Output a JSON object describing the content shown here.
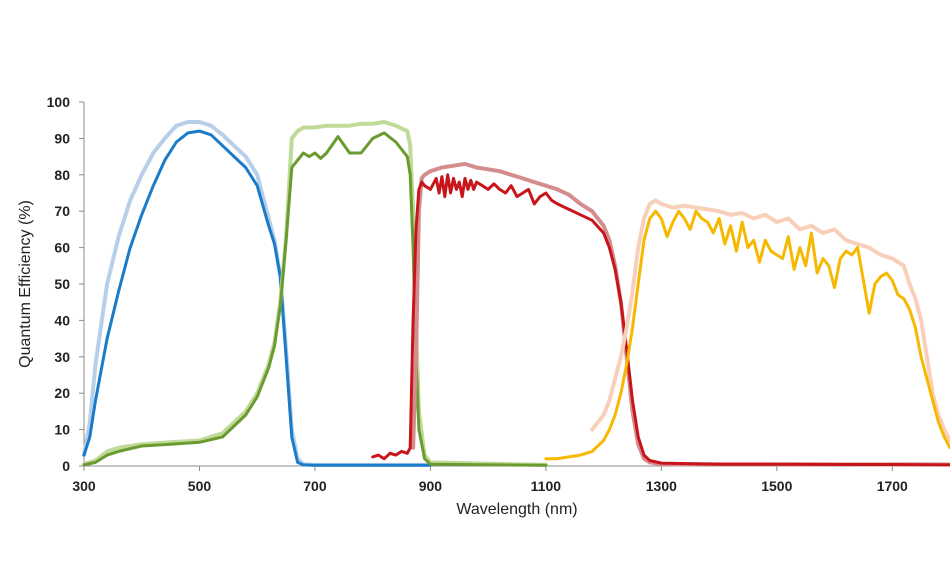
{
  "chart_data": {
    "type": "line",
    "title": "",
    "xlabel": "Wavelength (nm)",
    "ylabel": "Quantum Efficiency (%)",
    "xlim": [
      300,
      1800
    ],
    "ylim": [
      0,
      100
    ],
    "xticks": [
      300,
      500,
      700,
      900,
      1100,
      1300,
      1500,
      1700
    ],
    "yticks": [
      0,
      10,
      20,
      30,
      40,
      50,
      60,
      70,
      80,
      90,
      100
    ],
    "grid": false,
    "legend": "none",
    "series": [
      {
        "color": "#b7cfe9",
        "width": 4,
        "x": [
          300,
          310,
          320,
          340,
          360,
          380,
          400,
          420,
          440,
          460,
          480,
          500,
          520,
          540,
          560,
          580,
          600,
          620,
          630,
          640,
          650,
          660,
          670,
          680,
          700,
          900
        ],
        "y": [
          3,
          12,
          28,
          50,
          63,
          73,
          80,
          86,
          90,
          93.5,
          94.5,
          94.5,
          93.5,
          91,
          88,
          85,
          80,
          68,
          62,
          52,
          32,
          10,
          2,
          0.5,
          0.3,
          0.3
        ]
      },
      {
        "color": "#1a7cc9",
        "width": 3,
        "x": [
          300,
          310,
          320,
          340,
          360,
          380,
          400,
          420,
          440,
          460,
          480,
          500,
          520,
          540,
          560,
          580,
          600,
          620,
          630,
          640,
          650,
          660,
          670,
          680,
          700,
          900
        ],
        "y": [
          3,
          8,
          18,
          35,
          48,
          60,
          69,
          77,
          84,
          89,
          91.5,
          92,
          91,
          88,
          85,
          82,
          77,
          66,
          61,
          52,
          30,
          8,
          1,
          0.3,
          0.2,
          0.2
        ]
      },
      {
        "color": "#c0da98",
        "width": 4,
        "x": [
          300,
          320,
          340,
          360,
          400,
          450,
          500,
          540,
          580,
          600,
          620,
          630,
          640,
          650,
          660,
          670,
          680,
          700,
          720,
          740,
          760,
          780,
          800,
          820,
          840,
          860,
          865,
          870,
          875,
          880,
          890,
          900,
          1100
        ],
        "y": [
          0.5,
          1.5,
          4,
          5,
          6,
          6.5,
          7,
          9,
          15,
          20,
          28,
          34,
          45,
          63,
          90,
          92,
          93,
          93,
          93.5,
          93.5,
          93.5,
          94,
          94,
          94.5,
          93.5,
          92,
          88,
          70,
          40,
          15,
          3,
          1,
          0.3
        ]
      },
      {
        "color": "#6a9a30",
        "width": 3,
        "x": [
          300,
          320,
          340,
          360,
          400,
          450,
          500,
          540,
          580,
          600,
          620,
          630,
          640,
          650,
          660,
          670,
          680,
          690,
          700,
          710,
          720,
          740,
          760,
          780,
          800,
          820,
          840,
          860,
          865,
          870,
          875,
          880,
          890,
          900,
          1100
        ],
        "y": [
          0.3,
          1,
          3,
          4,
          5.5,
          6,
          6.5,
          8,
          14,
          19,
          27,
          33,
          44,
          62,
          82,
          84,
          86,
          85,
          86,
          84.5,
          86,
          90.5,
          86,
          86,
          90,
          91.5,
          89,
          85,
          80,
          60,
          30,
          10,
          2,
          0.5,
          0.2
        ]
      },
      {
        "color": "#d48c8c",
        "width": 4,
        "x": [
          870,
          875,
          880,
          885,
          890,
          900,
          920,
          940,
          960,
          980,
          1000,
          1020,
          1040,
          1060,
          1080,
          1100,
          1120,
          1140,
          1160,
          1180,
          1200,
          1210,
          1220,
          1230,
          1240,
          1250,
          1260,
          1270,
          1280,
          1300,
          1800
        ],
        "y": [
          5,
          30,
          70,
          79,
          80,
          81,
          82,
          82.5,
          83,
          82,
          81.5,
          81,
          80,
          79,
          78,
          77,
          76,
          74.5,
          72,
          70,
          66,
          62,
          55,
          45,
          30,
          15,
          6,
          2,
          1,
          0.5,
          0.4
        ]
      },
      {
        "color": "#c8151b",
        "width": 3,
        "x": [
          800,
          810,
          820,
          830,
          840,
          850,
          860,
          865,
          870,
          875,
          880,
          885,
          890,
          900,
          910,
          915,
          920,
          925,
          930,
          935,
          940,
          945,
          950,
          955,
          960,
          965,
          970,
          975,
          980,
          990,
          1000,
          1010,
          1020,
          1030,
          1040,
          1050,
          1060,
          1070,
          1080,
          1090,
          1100,
          1110,
          1120,
          1140,
          1160,
          1180,
          1200,
          1210,
          1220,
          1230,
          1240,
          1250,
          1260,
          1270,
          1280,
          1300,
          1400,
          1500,
          1600,
          1700,
          1800
        ],
        "y": [
          2.5,
          3,
          2,
          3.5,
          3,
          4,
          3.5,
          5,
          40,
          65,
          76,
          78,
          77,
          76,
          79,
          75,
          79.5,
          74,
          80,
          75,
          79,
          76,
          78,
          74,
          79,
          76,
          78.5,
          76,
          78,
          77,
          76,
          77.5,
          76,
          75,
          77,
          74,
          75,
          76,
          72,
          74,
          75,
          73,
          72,
          70.5,
          69,
          67.5,
          64,
          60,
          54,
          45,
          32,
          18,
          8,
          3,
          1.5,
          0.8,
          0.5,
          0.5,
          0.4,
          0.4,
          0.3
        ]
      },
      {
        "color": "#f8cfb8",
        "width": 4,
        "x": [
          1180,
          1200,
          1210,
          1220,
          1230,
          1240,
          1250,
          1260,
          1270,
          1280,
          1290,
          1300,
          1320,
          1340,
          1360,
          1380,
          1400,
          1420,
          1440,
          1460,
          1480,
          1500,
          1520,
          1540,
          1560,
          1580,
          1600,
          1620,
          1640,
          1660,
          1680,
          1700,
          1720,
          1730,
          1740,
          1750,
          1760,
          1770,
          1780,
          1790,
          1800
        ],
        "y": [
          10,
          14,
          18,
          24,
          30,
          38,
          48,
          60,
          68,
          72,
          73,
          72,
          71,
          71.5,
          71,
          70.5,
          70,
          69,
          69.5,
          68,
          69,
          67,
          68,
          65,
          66,
          64,
          65,
          62,
          61,
          60,
          58,
          57,
          55,
          50,
          46,
          40,
          30,
          20,
          14,
          10,
          7
        ]
      },
      {
        "color": "#f6b800",
        "width": 3,
        "x": [
          1100,
          1120,
          1140,
          1160,
          1180,
          1200,
          1210,
          1220,
          1230,
          1240,
          1250,
          1260,
          1270,
          1280,
          1290,
          1300,
          1310,
          1320,
          1330,
          1340,
          1350,
          1360,
          1370,
          1380,
          1390,
          1400,
          1410,
          1420,
          1430,
          1440,
          1450,
          1460,
          1470,
          1480,
          1490,
          1500,
          1510,
          1520,
          1530,
          1540,
          1550,
          1560,
          1570,
          1580,
          1590,
          1600,
          1610,
          1620,
          1630,
          1640,
          1650,
          1660,
          1670,
          1680,
          1690,
          1700,
          1710,
          1720,
          1730,
          1740,
          1750,
          1760,
          1770,
          1780,
          1790,
          1800
        ],
        "y": [
          2,
          2,
          2.5,
          3,
          4,
          7,
          10,
          14,
          20,
          28,
          38,
          50,
          62,
          68,
          70,
          68,
          63,
          67,
          70,
          68,
          65,
          70,
          68,
          67,
          64,
          68,
          61,
          66,
          59,
          67,
          60,
          62,
          56,
          62,
          59,
          58,
          57,
          63,
          54,
          60,
          55,
          64,
          53,
          57,
          55,
          49,
          57,
          59,
          58,
          60,
          51,
          42,
          50,
          52,
          53,
          51,
          47,
          46,
          43,
          38,
          30,
          24,
          18,
          12,
          8,
          5
        ]
      }
    ]
  }
}
